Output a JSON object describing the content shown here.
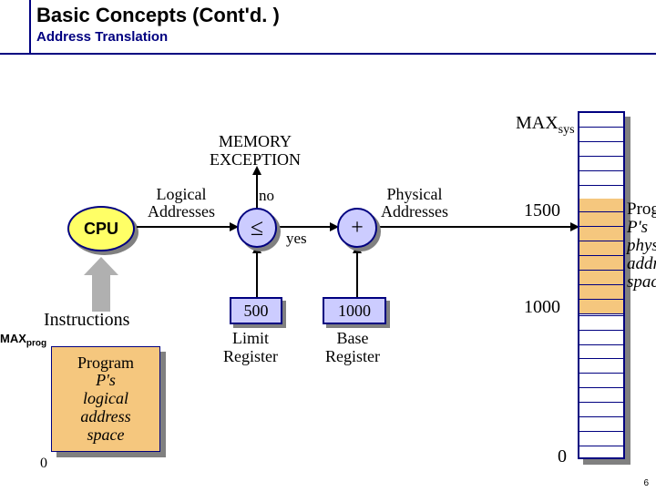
{
  "title": "Basic Concepts (Cont'd. )",
  "subtitle": "Address Translation",
  "cpu": "CPU",
  "instructions": "Instructions",
  "maxprog_prefix": "MAX",
  "maxprog_sub": "prog",
  "logical_box": "Program\nP's\nlogical\naddress\nspace",
  "zero_logical": "0",
  "mem_exception": "MEMORY\nEXCEPTION",
  "label_logical": "Logical\nAddresses",
  "label_physical": "Physical\nAddresses",
  "cmp_symbol": "≤",
  "add_symbol": "+",
  "no": "no",
  "yes": "yes",
  "limit_value": "500",
  "base_value": "1000",
  "limit_label": "Limit\nRegister",
  "base_label": "Base\nRegister",
  "maxsys_prefix": "MAX",
  "maxsys_sub": "sys",
  "mark_1500": "1500",
  "mark_1000": "1000",
  "mark_0": "0",
  "phys_space_label": "Program\nP's\nphysical\naddress\nspace",
  "slide_number": "6",
  "memory": {
    "rows": 24,
    "orange_top_row_index": 6,
    "orange_bottom_row_index": 13
  },
  "colors": {
    "navy": "#000080",
    "lilac": "#ccccff",
    "orange": "#f5c77e",
    "yellow": "#ffff66",
    "grey": "#808080"
  }
}
